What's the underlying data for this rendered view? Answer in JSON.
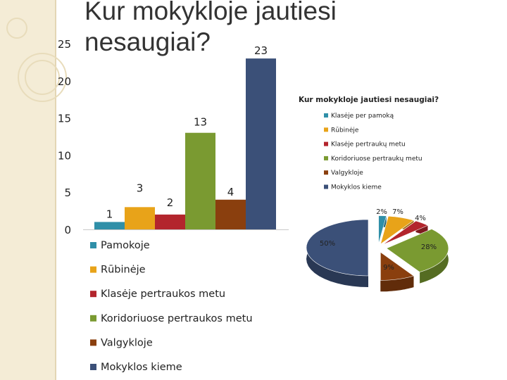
{
  "slide": {
    "title_line1": "Kur mokykloje jautiesi",
    "title_line2": "nesaugiai?"
  },
  "chart_data": [
    {
      "type": "bar",
      "categories": [
        "Pamokoje",
        "Rūbinėje",
        "Klasėje pertraukos metu",
        "Koridoriuose pertraukos metu",
        "Valgykloje",
        "Mokyklos kieme"
      ],
      "values": [
        1,
        3,
        2,
        13,
        4,
        23
      ],
      "colors": [
        "#2f8fa8",
        "#e8a319",
        "#b3252d",
        "#7a9a31",
        "#8a3f0e",
        "#3b5078"
      ],
      "y_ticks": [
        0,
        5,
        10,
        15,
        20,
        25
      ],
      "ylim": [
        0,
        25
      ],
      "legend": [
        "Pamokoje",
        "Rūbinėje",
        "Klasėje pertraukos metu",
        "Koridoriuose pertraukos metu",
        "Valgykloje",
        "Mokyklos kieme"
      ],
      "legend_position": "bottom"
    },
    {
      "type": "pie",
      "title": "Kur mokykloje jautiesi nesaugiai?",
      "labels": [
        "Klasėje per pamoką",
        "Rūbinėje",
        "Klasėje pertraukų metu",
        "Koridoriuose pertraukų metu",
        "Valgykloje",
        "Mokyklos kieme"
      ],
      "values": [
        2,
        7,
        4,
        28,
        9,
        50
      ],
      "value_labels": [
        "2%",
        "7%",
        "4%",
        "28%",
        "9%",
        "50%"
      ],
      "colors": [
        "#2f8fa8",
        "#e8a319",
        "#b3252d",
        "#7a9a31",
        "#8a3f0e",
        "#3b5078"
      ],
      "legend_position": "right"
    }
  ]
}
